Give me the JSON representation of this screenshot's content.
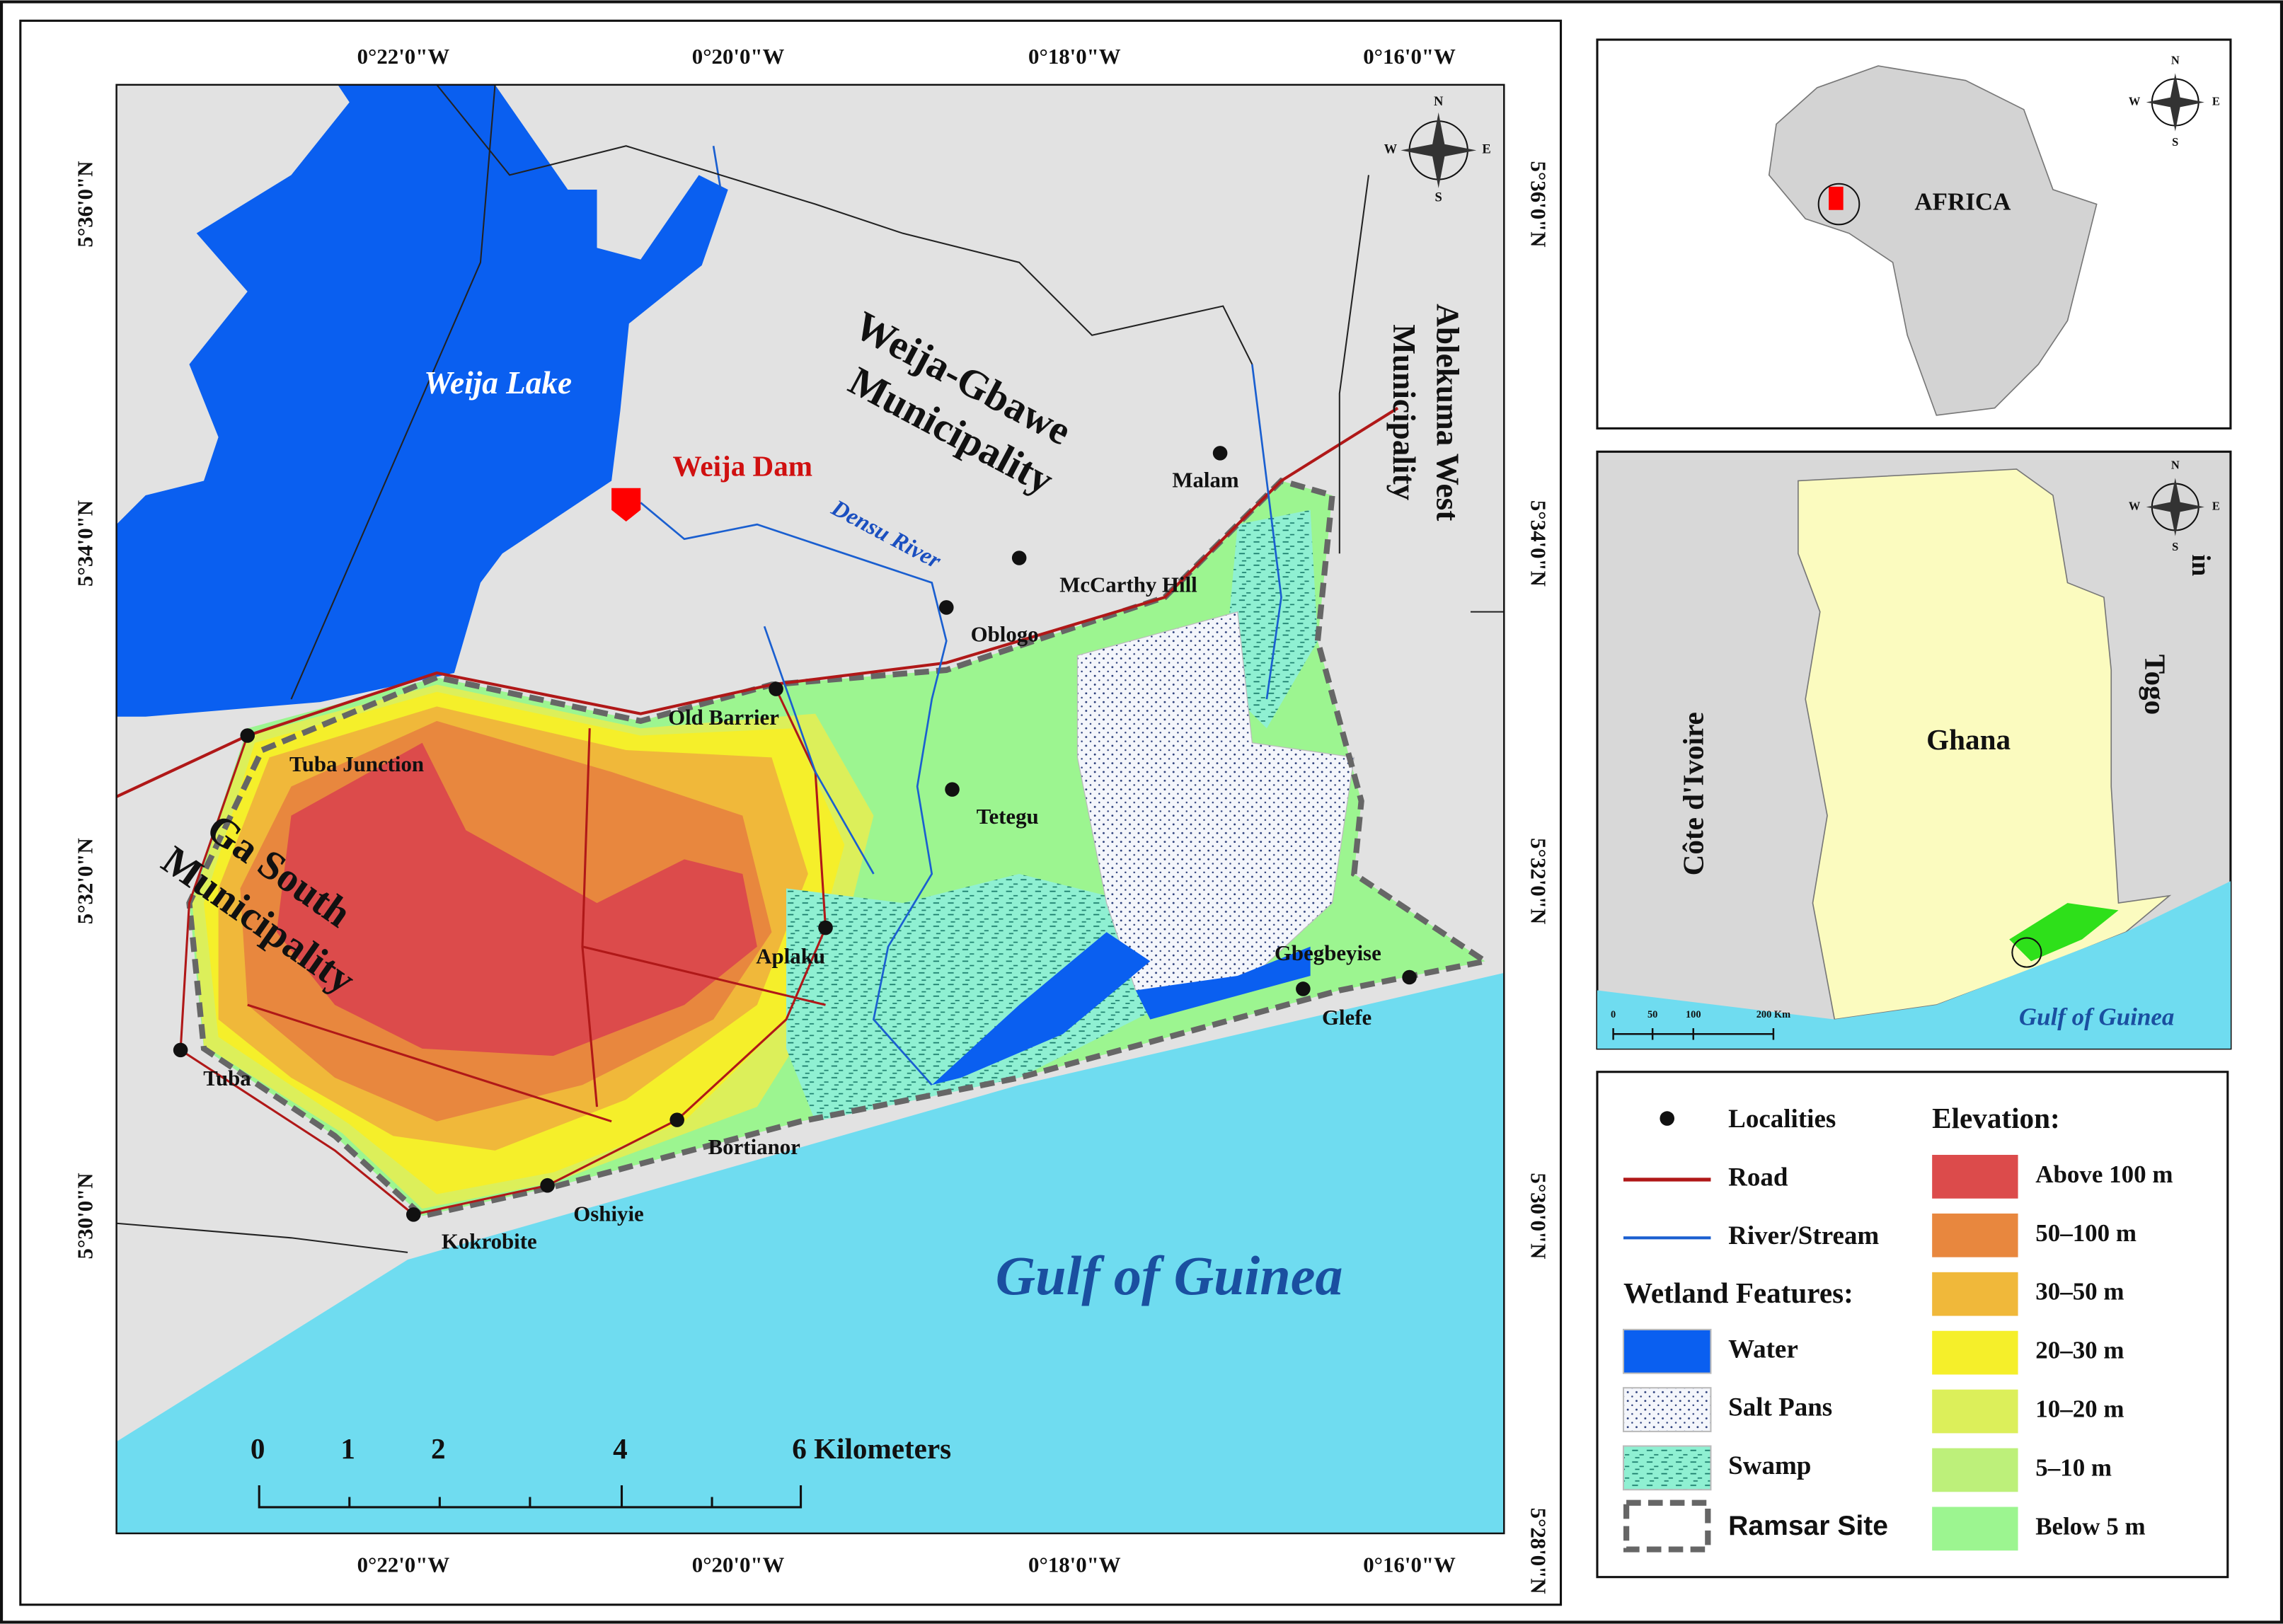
{
  "map": {
    "lon_labels_top": [
      "0°22'0\"W",
      "0°20'0\"W",
      "0°18'0\"W",
      "0°16'0\"W"
    ],
    "lon_labels_bottom": [
      "0°22'0\"W",
      "0°20'0\"W",
      "0°18'0\"W",
      "0°16'0\"W"
    ],
    "lat_labels_left": [
      "5°36'0\"N",
      "5°34'0\"N",
      "5°32'0\"N",
      "5°30'0\"N"
    ],
    "lat_labels_right": [
      "5°36'0\"N",
      "5°34'0\"N",
      "5°32'0\"N",
      "5°30'0\"N",
      "5°28'0\"N"
    ],
    "lake": "Weija Lake",
    "dam": "Weija Dam",
    "river": "Densu River",
    "weija_gbawe": [
      "Weija-Gbawe",
      "Municipality"
    ],
    "ablekuma": [
      "Ablekuma West",
      "Municipality"
    ],
    "ga_south": [
      "Ga South",
      "Municipality"
    ],
    "sea": "Gulf of Guinea",
    "localities": [
      "Malam",
      "McCarthy Hill",
      "Oblogo",
      "Old Barrier",
      "Tuba Junction",
      "Tetegu",
      "Aplaku",
      "Tuba",
      "Bortianor",
      "Oshiyie",
      "Kokrobite",
      "Gbegbeyise",
      "Glefe"
    ],
    "compass": [
      "N",
      "E",
      "S",
      "W"
    ],
    "scale_bar": [
      "0",
      "1",
      "2",
      "4",
      "6 Kilometers"
    ]
  },
  "africa_inset": {
    "label": "AFRICA",
    "compass": [
      "N",
      "E",
      "S",
      "W"
    ]
  },
  "ghana_inset": {
    "country": "Ghana",
    "west": "Côte d'Ivoire",
    "east": "Togo",
    "fragment": "in",
    "sea": "Gulf of Guinea",
    "scale": [
      "0",
      "50",
      "100",
      "200 Km"
    ],
    "compass": [
      "N",
      "E",
      "S",
      "W"
    ]
  },
  "legend": {
    "localities": "Localities",
    "road": "Road",
    "river": "River/Stream",
    "wetland_title": "Wetland Features:",
    "wetland": [
      {
        "label": "Water",
        "color": "#0a5ff0"
      },
      {
        "label": "Salt Pans",
        "color": "#f4f6fb"
      },
      {
        "label": "Swamp",
        "color": "#8ff0d2"
      }
    ],
    "ramsar": "Ramsar Site",
    "elevation_title": "Elevation:",
    "elevation": [
      {
        "label": "Above 100 m",
        "color": "#dc4b4b"
      },
      {
        "label": "50–100 m",
        "color": "#e8873e"
      },
      {
        "label": "30–50 m",
        "color": "#f0b83a"
      },
      {
        "label": "20–30 m",
        "color": "#f5ef2a"
      },
      {
        "label": "10–20 m",
        "color": "#dcef5a"
      },
      {
        "label": "5–10 m",
        "color": "#bdf07a"
      },
      {
        "label": "Below 5 m",
        "color": "#9cf590"
      }
    ]
  }
}
